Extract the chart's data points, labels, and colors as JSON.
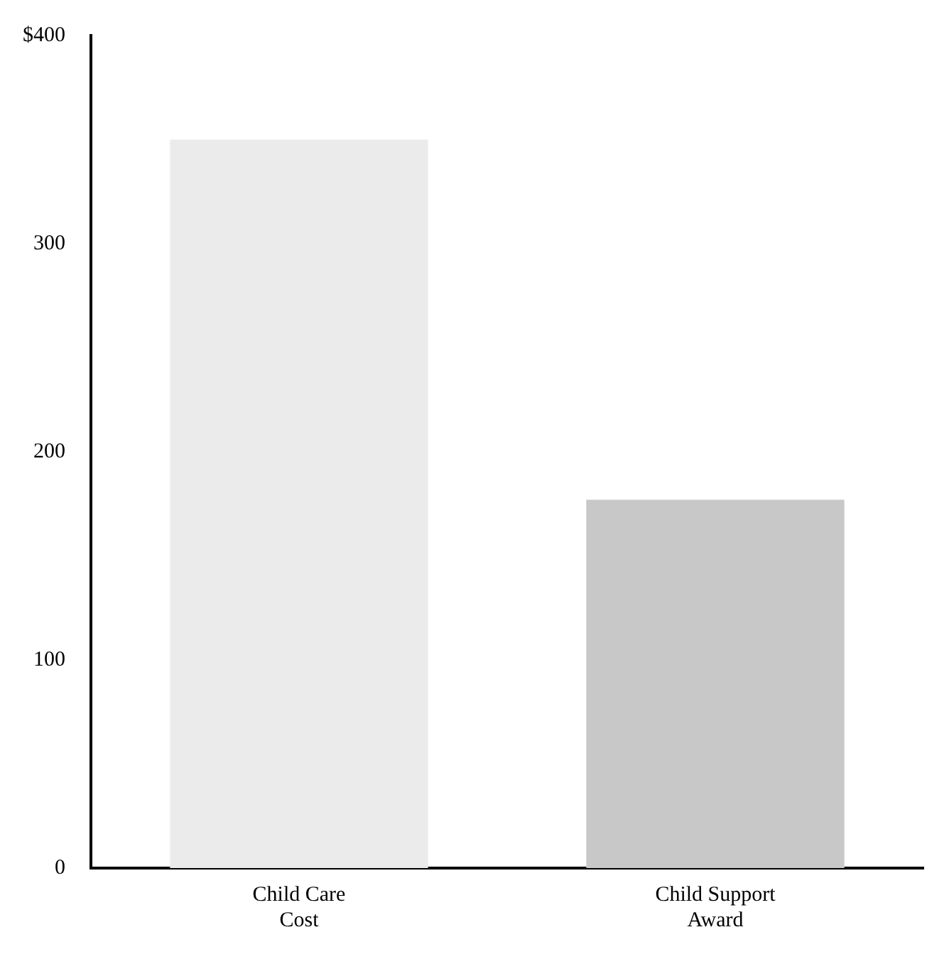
{
  "chart_data": {
    "type": "bar",
    "categories": [
      "Child Care\nCost",
      "Child Support\nAward"
    ],
    "values": [
      350,
      177
    ],
    "colors": [
      "#ebebeb",
      "#c8c8c8"
    ],
    "ylim": [
      0,
      400
    ],
    "yticks": [
      0,
      100,
      200,
      300,
      {
        "value": 400,
        "label": "$400"
      }
    ],
    "grid": false
  }
}
